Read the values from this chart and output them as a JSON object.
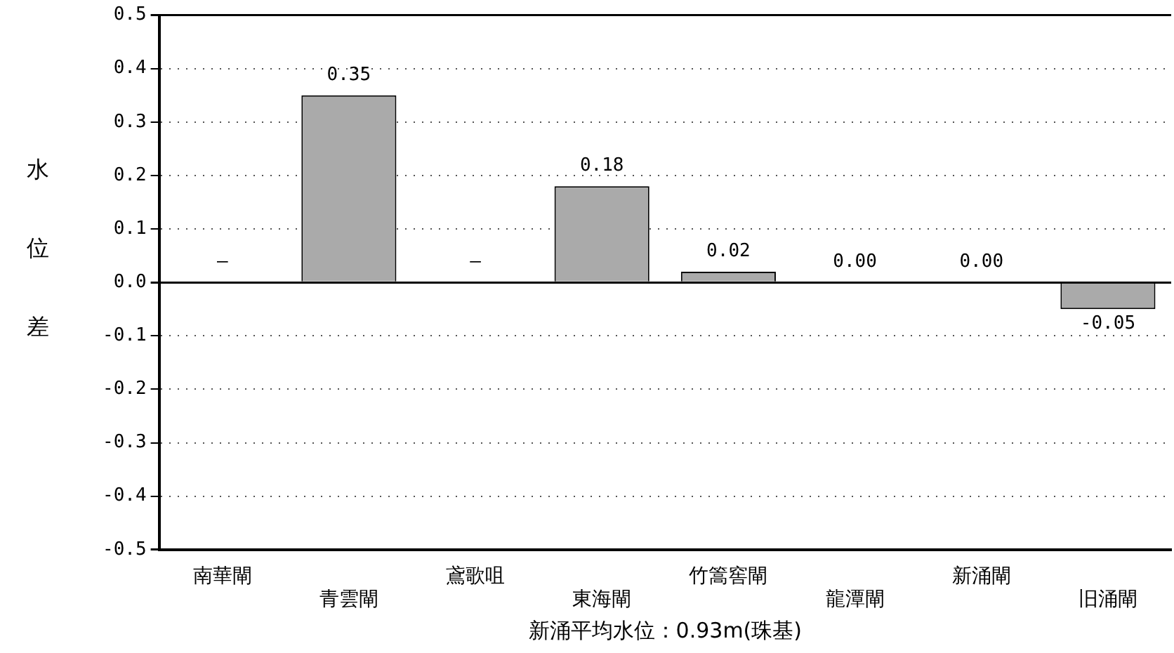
{
  "chart_data": {
    "type": "bar",
    "xlabel": "新涌平均水位：0.93m(珠基)",
    "ylabel": "水位差",
    "categories": [
      "南華閘",
      "青雲閘",
      "鳶歌咀",
      "東海閘",
      "竹篙窖閘",
      "龍潭閘",
      "新涌閘",
      "旧涌閘"
    ],
    "values": [
      null,
      0.35,
      null,
      0.18,
      0.02,
      0.0,
      0.0,
      -0.05
    ],
    "value_labels": [
      "—",
      "0.35",
      "—",
      "0.18",
      "0.02",
      "0.00",
      "0.00",
      "-0.05"
    ],
    "color": "#aaaaaa",
    "ylim": [
      -0.5,
      0.5
    ],
    "yticks": [
      -0.5,
      -0.4,
      -0.3,
      -0.2,
      -0.1,
      {
        "value": 0,
        "label": "0.0"
      },
      0.1,
      0.2,
      0.3,
      0.4,
      0.5
    ],
    "grid": "y"
  }
}
